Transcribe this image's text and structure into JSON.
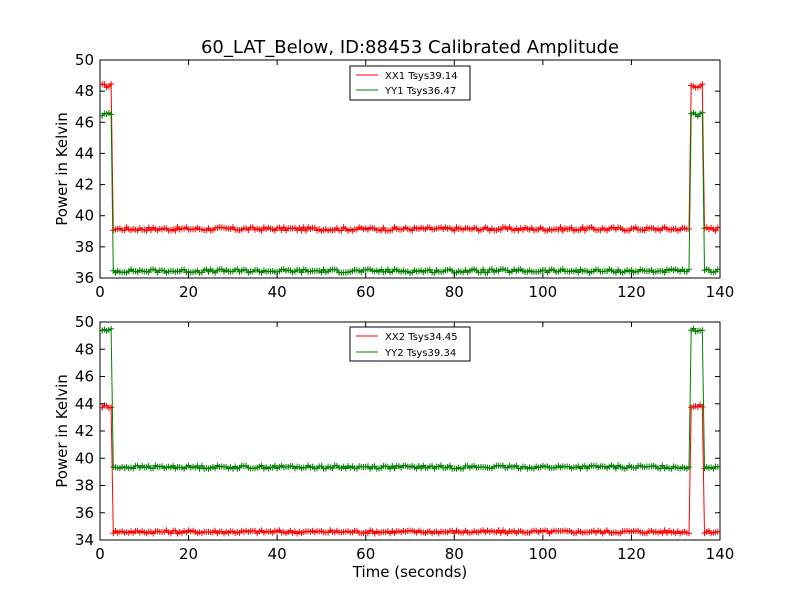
{
  "figure": {
    "title": "60_LAT_Below, ID:88453 Calibrated Amplitude"
  },
  "colors": {
    "red": "#ff0000",
    "green": "#008000",
    "axes": "#000000",
    "background": "#ffffff"
  },
  "chart_data": [
    {
      "type": "line",
      "title": "60_LAT_Below, ID:88453 Calibrated Amplitude",
      "xlabel": "",
      "ylabel": "Power in Kelvin",
      "xlim": [
        0,
        140
      ],
      "ylim": [
        36,
        50
      ],
      "xticks": [
        "0",
        "20",
        "40",
        "60",
        "80",
        "100",
        "120",
        "140"
      ],
      "yticks": [
        "36",
        "38",
        "40",
        "42",
        "44",
        "46",
        "48",
        "50"
      ],
      "grid": false,
      "legend_position": "top-center",
      "markers": "+",
      "series": [
        {
          "name": "XX1 Tsys39.14",
          "color": "#ff0000",
          "baseline": 39.15,
          "high": 48.35,
          "transitions": [
            2.6,
            2.8,
            3.0
          ],
          "return_transitions": [
            133.0,
            133.3
          ],
          "end_transitions": [
            136.0,
            136.4
          ]
        },
        {
          "name": "YY1 Tsys36.47",
          "color": "#008000",
          "baseline": 36.45,
          "high": 46.5,
          "transitions": [
            2.6,
            2.8,
            3.0
          ],
          "return_transitions": [
            133.0,
            133.3
          ],
          "end_transitions": [
            136.0,
            136.4
          ]
        }
      ]
    },
    {
      "type": "line",
      "title": "",
      "xlabel": "Time (seconds)",
      "ylabel": "Power in Kelvin",
      "xlim": [
        0,
        140
      ],
      "ylim": [
        34,
        50
      ],
      "xticks": [
        "0",
        "20",
        "40",
        "60",
        "80",
        "100",
        "120",
        "140"
      ],
      "yticks": [
        "34",
        "36",
        "38",
        "40",
        "42",
        "44",
        "46",
        "48",
        "50"
      ],
      "grid": false,
      "legend_position": "top-center",
      "markers": "+",
      "series": [
        {
          "name": "XX2 Tsys34.45",
          "color": "#ff0000",
          "baseline": 34.6,
          "high": 43.8,
          "transitions": [
            2.6,
            2.8,
            3.0
          ],
          "return_transitions": [
            133.0,
            133.3
          ],
          "end_transitions": [
            136.0,
            136.4
          ]
        },
        {
          "name": "YY2 Tsys39.34",
          "color": "#008000",
          "baseline": 39.35,
          "high": 49.4,
          "transitions": [
            2.6,
            2.8,
            3.0
          ],
          "return_transitions": [
            133.0,
            133.3
          ],
          "end_transitions": [
            136.0,
            136.4
          ]
        }
      ]
    }
  ]
}
